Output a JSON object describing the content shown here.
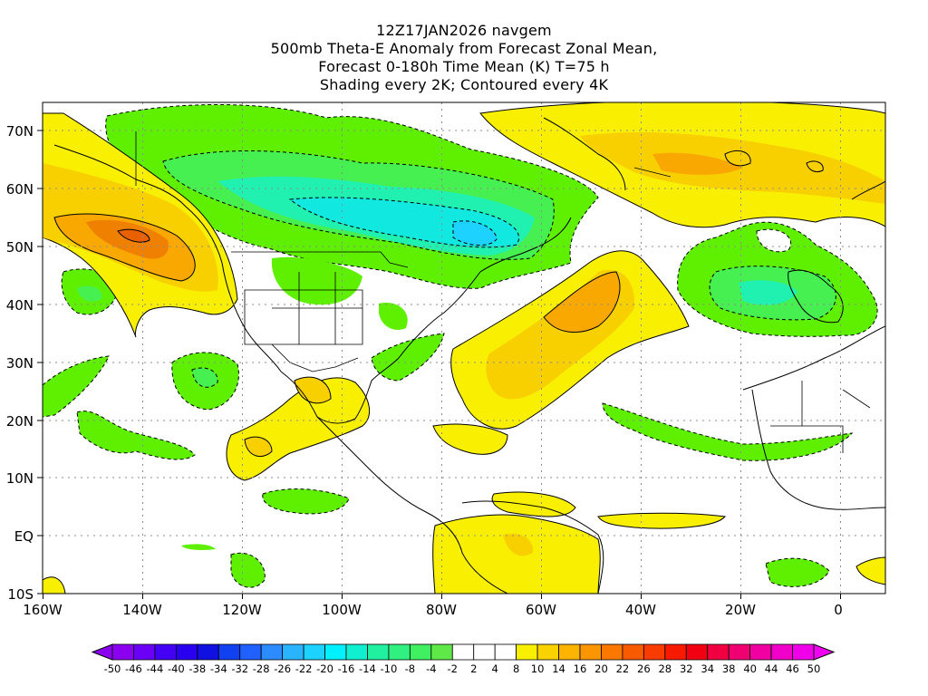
{
  "title": {
    "line1": "12Z17JAN2026 navgem",
    "line2": "500mb Theta-E Anomaly from Forecast Zonal Mean,",
    "line3": "Forecast 0-180h Time Mean (K) T=75 h",
    "line4": "Shading every 2K; Contoured every 4K"
  },
  "map": {
    "lon_labels": [
      "160W",
      "140W",
      "120W",
      "100W",
      "80W",
      "60W",
      "40W",
      "20W",
      "0"
    ],
    "lat_labels": [
      "70N",
      "60N",
      "50N",
      "40N",
      "30N",
      "20N",
      "10N",
      "EQ",
      "10S"
    ]
  },
  "colorbar": {
    "labels": [
      "-50",
      "-46",
      "-44",
      "-40",
      "-38",
      "-34",
      "-32",
      "-28",
      "-26",
      "-22",
      "-20",
      "-16",
      "-14",
      "-10",
      "-8",
      "-4",
      "-2",
      "2",
      "4",
      "8",
      "10",
      "14",
      "16",
      "20",
      "22",
      "26",
      "28",
      "32",
      "34",
      "38",
      "40",
      "44",
      "46",
      "50"
    ],
    "colors": [
      "#8c00f0",
      "#6a00f5",
      "#4400f5",
      "#2a00f0",
      "#1010e0",
      "#1040f0",
      "#2060ff",
      "#2c8cff",
      "#2ab4ff",
      "#1ed2ff",
      "#00f0ff",
      "#10f0d0",
      "#20f0a0",
      "#30f080",
      "#40f060",
      "#60e848",
      "#ffffff",
      "#ffffff",
      "#ffffff",
      "#f8f000",
      "#fad200",
      "#fcb400",
      "#fc9600",
      "#fa7800",
      "#f85a00",
      "#f83c00",
      "#f81a00",
      "#f00010",
      "#f00040",
      "#f00070",
      "#f000a0",
      "#f000c8",
      "#f000e8"
    ]
  },
  "colors": {
    "green": "#5ef000",
    "light_green": "#46f050",
    "teal": "#20f0b0",
    "cyan": "#10e8e0",
    "yellow": "#f8f000",
    "gold": "#f8d000",
    "orange": "#f8a800",
    "dark_orange": "#f08000"
  }
}
